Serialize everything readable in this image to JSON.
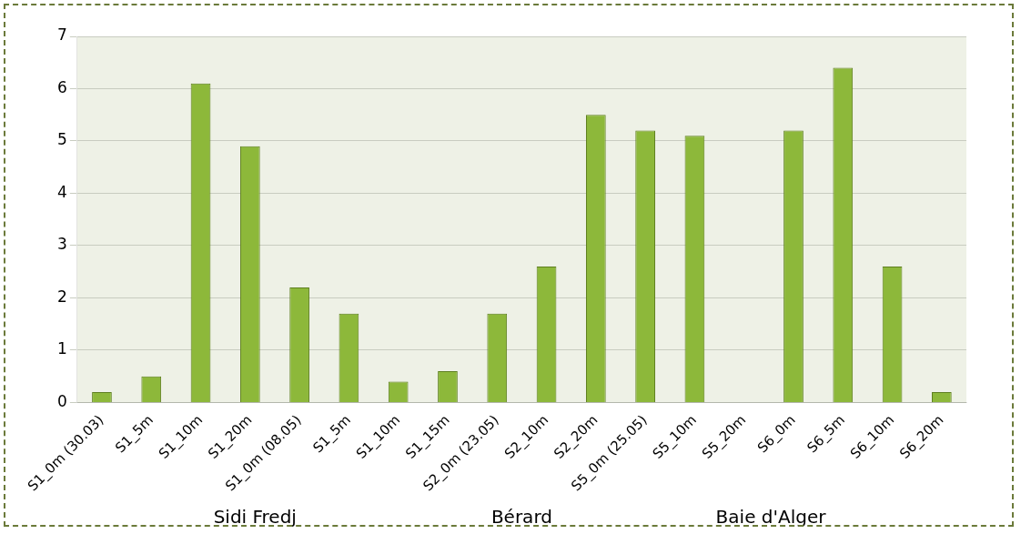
{
  "chart_data": {
    "type": "bar",
    "categories": [
      "S1_0m (30.03)",
      "S1_5m",
      "S1_10m",
      "S1_20m",
      "S1_0m (08.05)",
      "S1_5m",
      "S1_10m",
      "S1_15m",
      "S2_0m (23.05)",
      "S2_10m",
      "S2_20m",
      "S5_0m (25.05)",
      "S5_10m",
      "S5_20m",
      "S6_0m",
      "S6_5m",
      "S6_10m",
      "S6_20m"
    ],
    "values": [
      0.2,
      0.5,
      6.1,
      4.9,
      2.2,
      1.7,
      0.4,
      0.6,
      1.7,
      2.6,
      5.5,
      5.2,
      5.1,
      0,
      5.2,
      6.4,
      2.6,
      0.2
    ],
    "color": "#8db83a",
    "ylim": [
      0,
      7
    ],
    "yticks": [
      0,
      1,
      2,
      3,
      4,
      5,
      6,
      7
    ],
    "grid": "y",
    "legend": false,
    "annotations": [
      "Sidi Fredj",
      "Bérard",
      "Baie d'Alger"
    ]
  }
}
